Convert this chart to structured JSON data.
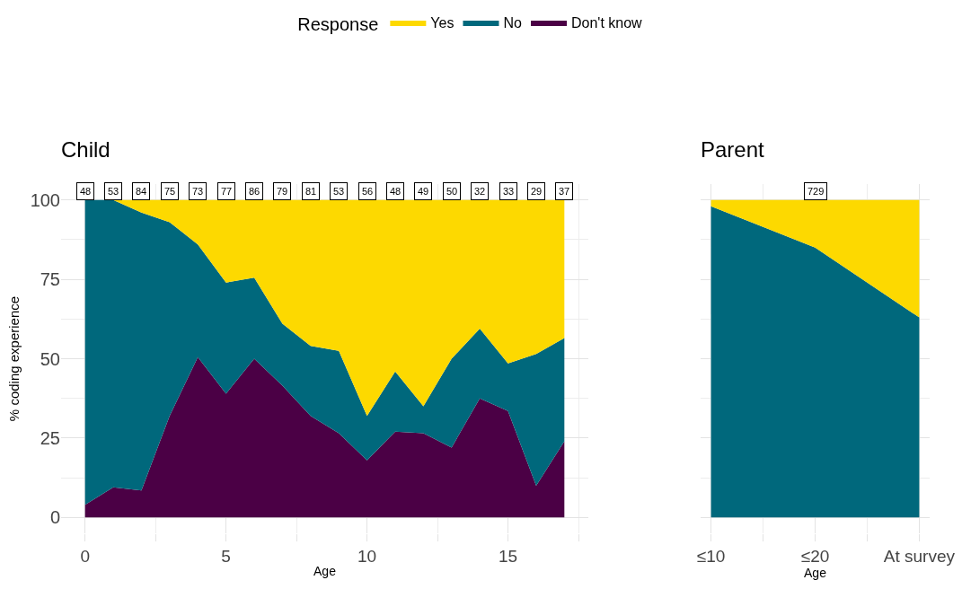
{
  "chart_data": [
    {
      "type": "area",
      "title": "Child",
      "xlabel": "Age",
      "ylabel": "% coding experience",
      "legend_title": "Response",
      "legend": "top",
      "stacked": true,
      "grid": true,
      "x": [
        0,
        1,
        2,
        3,
        4,
        5,
        6,
        7,
        8,
        9,
        10,
        11,
        12,
        13,
        14,
        15,
        16,
        17
      ],
      "xlim": [
        -0.85,
        17.85
      ],
      "xticks": [
        0,
        5,
        10,
        15
      ],
      "ylim": [
        -5,
        105
      ],
      "yticks": [
        0,
        25,
        50,
        75,
        100
      ],
      "series": [
        {
          "name": "Don't know",
          "color": "#4b0045",
          "values": [
            4,
            9.5,
            8.5,
            32,
            50.5,
            39,
            50,
            41.5,
            32,
            26.5,
            18,
            27,
            26.5,
            22,
            37.5,
            33.5,
            10,
            24
          ]
        },
        {
          "name": "No",
          "color": "#00687c",
          "values": [
            96,
            90.5,
            87.5,
            61,
            35.5,
            35,
            25.5,
            19.5,
            22,
            26,
            14,
            19,
            8.5,
            28,
            22,
            15,
            41.5,
            32.5
          ]
        },
        {
          "name": "Yes",
          "color": "#fdd900",
          "values": [
            0,
            0,
            4,
            7,
            14,
            26,
            24.5,
            39,
            46,
            47.5,
            68,
            54,
            65,
            50,
            40.5,
            51.5,
            48.5,
            43.5
          ]
        }
      ],
      "annotations": [
        {
          "text": "48",
          "x": 0,
          "y": 100
        },
        {
          "text": "53",
          "x": 1,
          "y": 100
        },
        {
          "text": "84",
          "x": 2,
          "y": 100
        },
        {
          "text": "75",
          "x": 3,
          "y": 100
        },
        {
          "text": "73",
          "x": 4,
          "y": 100
        },
        {
          "text": "77",
          "x": 5,
          "y": 100
        },
        {
          "text": "86",
          "x": 6,
          "y": 100
        },
        {
          "text": "79",
          "x": 7,
          "y": 100
        },
        {
          "text": "81",
          "x": 8,
          "y": 100
        },
        {
          "text": "53",
          "x": 9,
          "y": 100
        },
        {
          "text": "56",
          "x": 10,
          "y": 100
        },
        {
          "text": "48",
          "x": 11,
          "y": 100
        },
        {
          "text": "49",
          "x": 12,
          "y": 100
        },
        {
          "text": "50",
          "x": 13,
          "y": 100
        },
        {
          "text": "32",
          "x": 14,
          "y": 100
        },
        {
          "text": "33",
          "x": 15,
          "y": 100
        },
        {
          "text": "29",
          "x": 16,
          "y": 100
        },
        {
          "text": "37",
          "x": 17,
          "y": 100
        }
      ]
    },
    {
      "type": "area",
      "title": "Parent",
      "xlabel": "Age",
      "stacked": true,
      "grid": true,
      "legend": false,
      "tick_labels": "x",
      "categories": [
        "≤10",
        "≤20",
        "At survey"
      ],
      "ylim": [
        -5,
        105
      ],
      "yticks": [
        0,
        25,
        50,
        75,
        100
      ],
      "series": [
        {
          "color": "#00687c",
          "values": [
            98,
            85,
            63
          ]
        },
        {
          "color": "#fdd900",
          "values": [
            2,
            15,
            37
          ]
        }
      ],
      "annotations": [
        {
          "text": "729",
          "x": "≤20",
          "y": 100
        }
      ]
    }
  ]
}
